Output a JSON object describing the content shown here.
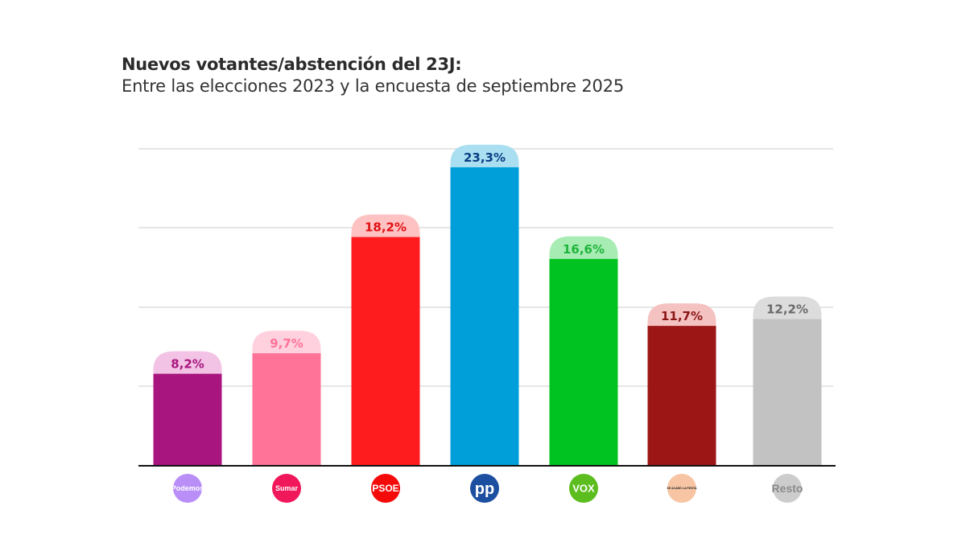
{
  "chart_data": {
    "type": "bar",
    "title": "Nuevos votantes/abstención del 23J:",
    "subtitle": "Entre las elecciones 2023 y la encuesta de septiembre 2025",
    "xlabel": "",
    "ylabel": "",
    "ylim": [
      0,
      25
    ],
    "grid": true,
    "categories": [
      "Podemos",
      "Sumar",
      "PSOE",
      "PP",
      "VOX",
      "Se Acabó La Fiesta",
      "Resto"
    ],
    "values": [
      8.2,
      9.7,
      18.2,
      23.3,
      16.6,
      11.7,
      12.2
    ],
    "value_labels": [
      "8,2%",
      "9,7%",
      "18,2%",
      "23,3%",
      "16,6%",
      "11,7%",
      "12,2%"
    ],
    "bar_colors": [
      "#a8157e",
      "#ff7399",
      "#ff1c1f",
      "#009fd9",
      "#00c221",
      "#9c1616",
      "#c2c2c2"
    ],
    "cap_colors": [
      "#f2c3e4",
      "#ffd0dd",
      "#ffc2c2",
      "#a9dff1",
      "#a6ecb3",
      "#f5c2c2",
      "#dcdcdc"
    ],
    "label_colors": [
      "#a8157e",
      "#ff7399",
      "#e01015",
      "#0a3d84",
      "#1fb53b",
      "#8c1515",
      "#6a6a6a"
    ],
    "logos": [
      {
        "text": "Podemos",
        "bg": "#b98ef7",
        "fg": "#ffffff"
      },
      {
        "text": "Sumar",
        "bg": "#f0175a",
        "fg": "#ffffff"
      },
      {
        "text": "PSOE",
        "bg": "#f50a0a",
        "fg": "#ffffff"
      },
      {
        "text": "pp",
        "bg": "#1d4fa0",
        "fg": "#ffffff"
      },
      {
        "text": "VOX",
        "bg": "#5bbd1e",
        "fg": "#ffffff"
      },
      {
        "text": "SE ACABÓ LA FIESTA",
        "bg": "#f7c5a4",
        "fg": "#222222"
      },
      {
        "text": "Resto",
        "bg": "#cccccc",
        "fg": "#8a8a8a"
      }
    ]
  }
}
